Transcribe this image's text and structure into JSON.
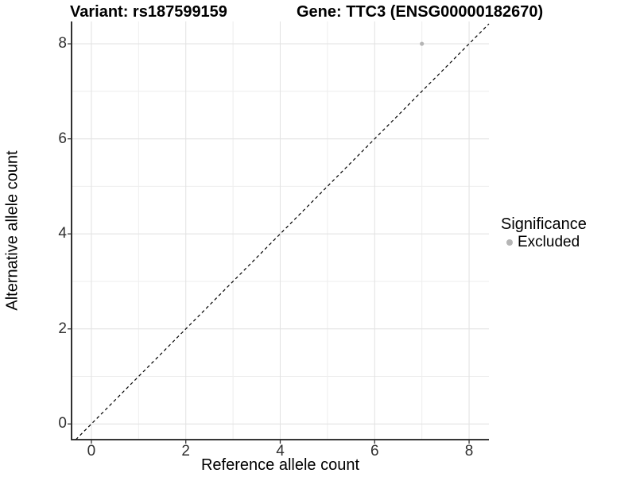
{
  "chart_data": {
    "type": "scatter",
    "titles": {
      "variant": "Variant: rs187599159",
      "gene": "Gene: TTC3 (ENSG00000182670)"
    },
    "xlabel": "Reference allele count",
    "ylabel": "Alternative allele count",
    "xlim": [
      -0.42,
      8.42
    ],
    "ylim": [
      -0.33,
      8.47
    ],
    "xticks": [
      0,
      2,
      4,
      6,
      8
    ],
    "yticks": [
      0,
      2,
      4,
      6,
      8
    ],
    "xticks_minor": [
      1,
      3,
      5,
      7
    ],
    "yticks_minor": [
      1,
      3,
      5,
      7
    ],
    "grid": true,
    "points": [
      {
        "x": 7,
        "y": 8,
        "series": "Excluded"
      }
    ],
    "reference_line": {
      "style": "dashed",
      "slope": 1,
      "intercept": 0
    },
    "legend": {
      "title": "Significance",
      "position": "right",
      "items": [
        {
          "label": "Excluded",
          "color": "#b5b5b5"
        }
      ]
    }
  },
  "colors": {
    "background": "#ffffff",
    "grid_major": "#e3e3e3",
    "grid_minor": "#eeeeee",
    "axis_line": "#1a1a1a",
    "tick_mark": "#333333",
    "tick_label": "#303030",
    "text": "#000000",
    "reference_line": "#000000"
  }
}
